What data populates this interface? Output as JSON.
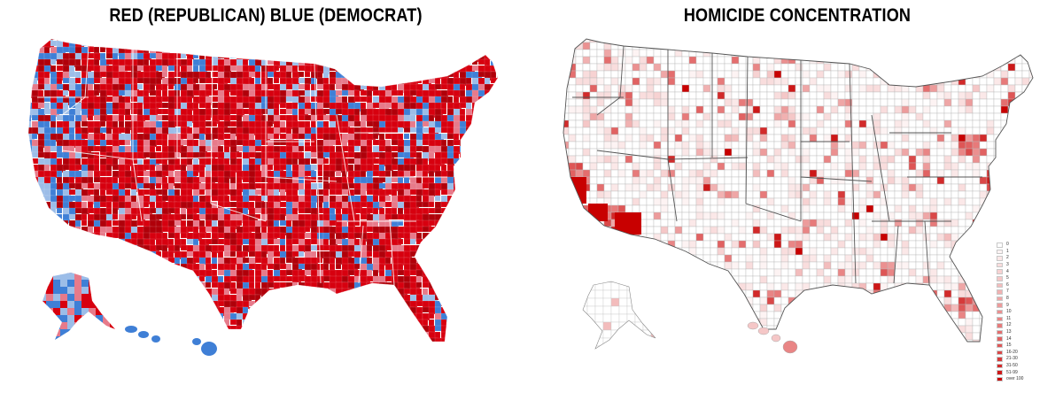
{
  "left_map": {
    "title": "RED (REPUBLICAN)  BLUE (DEMOCRAT)",
    "colors": {
      "republican": "#d7000f",
      "republican_dark": "#b0000a",
      "lean_republican": "#e77a8a",
      "lean_democrat": "#9cbde8",
      "democrat": "#3f7fd6",
      "democrat_dark": "#2c6ac4"
    }
  },
  "right_map": {
    "title": "HOMICIDE CONCENTRATION",
    "legend": [
      {
        "label": "0",
        "color": "#ffffff"
      },
      {
        "label": "1",
        "color": "#fdf3f3"
      },
      {
        "label": "2",
        "color": "#fbe8e8"
      },
      {
        "label": "3",
        "color": "#f9dddd"
      },
      {
        "label": "4",
        "color": "#f7d2d2"
      },
      {
        "label": "5",
        "color": "#f5c7c7"
      },
      {
        "label": "6",
        "color": "#f3bcbc"
      },
      {
        "label": "7",
        "color": "#f1b1b1"
      },
      {
        "label": "8",
        "color": "#efa6a6"
      },
      {
        "label": "9",
        "color": "#ed9b9b"
      },
      {
        "label": "10",
        "color": "#eb9090"
      },
      {
        "label": "11",
        "color": "#e98585"
      },
      {
        "label": "12",
        "color": "#e77a7a"
      },
      {
        "label": "13",
        "color": "#e46e6e"
      },
      {
        "label": "14",
        "color": "#e16262"
      },
      {
        "label": "15",
        "color": "#de5656"
      },
      {
        "label": "16-20",
        "color": "#da4848"
      },
      {
        "label": "21-30",
        "color": "#d63a3a"
      },
      {
        "label": "31-50",
        "color": "#d22a2a"
      },
      {
        "label": "51-99",
        "color": "#cd1818"
      },
      {
        "label": "over 100",
        "color": "#c80000"
      }
    ]
  }
}
